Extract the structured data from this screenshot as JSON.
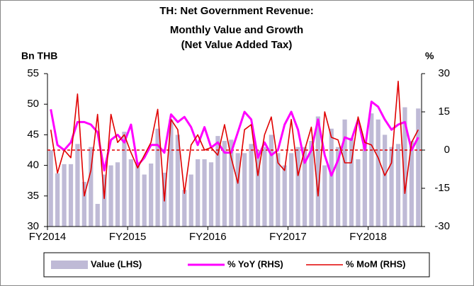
{
  "chart_data": {
    "type": "bar_line_dual",
    "title": [
      "TH: Net Government Revenue:",
      "Monthly Value and Growth",
      "(Net Value Added Tax)"
    ],
    "ylabel": "Bn THB",
    "y2label": "%",
    "categories": [
      "FY2014",
      null,
      null,
      null,
      null,
      null,
      null,
      null,
      null,
      null,
      null,
      null,
      "FY2015",
      null,
      null,
      null,
      null,
      null,
      null,
      null,
      null,
      null,
      null,
      null,
      "FY2016",
      null,
      null,
      null,
      null,
      null,
      null,
      null,
      null,
      null,
      null,
      null,
      "FY2017",
      null,
      null,
      null,
      null,
      null,
      null,
      null,
      null,
      null,
      null,
      null,
      "FY2018",
      null,
      null,
      null,
      null,
      null,
      null,
      null
    ],
    "ylim": [
      30,
      55
    ],
    "yticks": [
      30,
      35,
      40,
      45,
      50,
      55
    ],
    "y2lim": [
      -30,
      30
    ],
    "y2ticks": [
      -30,
      -15,
      0,
      15,
      30
    ],
    "series": [
      {
        "name": "Value (LHS)",
        "kind": "bar",
        "color": "#bfbad6",
        "values": [
          42.5,
          38.7,
          40.2,
          40.2,
          43.5,
          37.3,
          43,
          33.7,
          38.5,
          40,
          40.5,
          45.5,
          41,
          40.5,
          38.5,
          40.3,
          46,
          38.8,
          47.5,
          45,
          36,
          38.5,
          41,
          41,
          40.5,
          44.8,
          44,
          44.2,
          42,
          42,
          43.5,
          42.5,
          43,
          45,
          42,
          40,
          42,
          43,
          43,
          44,
          48,
          40,
          46,
          43,
          47.5,
          44.5,
          41,
          44,
          48.5,
          47.5,
          45,
          43,
          43.5,
          49.5,
          44,
          49.3
        ]
      },
      {
        "name": "% YoY (RHS)",
        "kind": "line",
        "axis": "y2",
        "color": "#ff00ff",
        "values": [
          16,
          2,
          0,
          3,
          11,
          11,
          10,
          7,
          -8,
          4,
          6,
          3,
          10,
          -6,
          -3,
          2,
          2,
          -1,
          14,
          11,
          13,
          9,
          2,
          9,
          1,
          3,
          -1,
          -1,
          7,
          15,
          12,
          -3,
          3,
          -2,
          0,
          10,
          15,
          8,
          -5,
          0,
          12,
          -2,
          -10,
          -4,
          5,
          4,
          12,
          0,
          19,
          17,
          12,
          8,
          10,
          11,
          0,
          5
        ]
      },
      {
        "name": "% MoM (RHS)",
        "kind": "line",
        "axis": "y2",
        "color": "#e00000",
        "values": [
          8,
          -9,
          0,
          -3,
          22,
          -18,
          -8,
          14,
          -19,
          14,
          3,
          6,
          -1,
          -7,
          -2,
          3,
          16,
          -20,
          12,
          8,
          -17,
          2,
          6,
          0,
          1,
          -2,
          10,
          -3,
          -13,
          8,
          10,
          -10,
          6,
          13,
          -5,
          -8,
          12,
          -10,
          0,
          9,
          -18,
          15,
          5,
          4,
          -5,
          -5,
          13,
          3,
          2,
          -3,
          -10,
          -5,
          27,
          -17,
          3,
          8
        ]
      }
    ]
  }
}
